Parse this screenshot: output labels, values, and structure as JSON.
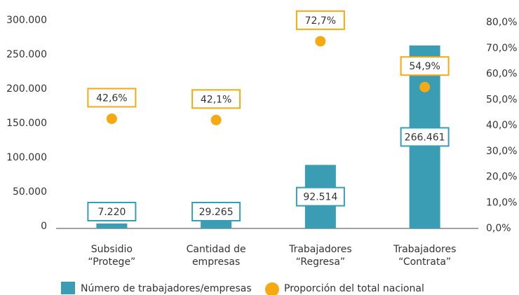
{
  "chart_data": {
    "type": "bar",
    "categories": [
      "Subsidio “Protege”",
      "Cantidad de empresas",
      "Trabajadores “Regresa”",
      "Trabajadores “Contrata”"
    ],
    "series": [
      {
        "name": "Número de trabajadores/empresas",
        "type": "bar",
        "color": "#3a9db4",
        "values": [
          7220,
          29265,
          92514,
          266461
        ],
        "value_labels": [
          "7.220",
          "29.265",
          "92.514",
          "266.461"
        ]
      },
      {
        "name": "Proporción del total nacional",
        "type": "scatter",
        "axis": "y2",
        "color": "#f5a913",
        "values": [
          42.6,
          42.1,
          72.7,
          54.9
        ],
        "value_labels": [
          "42,6%",
          "42,1%",
          "72,7%",
          "54,9%"
        ]
      }
    ],
    "ylim": [
      0,
      300000
    ],
    "yticks": [
      0,
      {
        "value": 50000,
        "label": "50.000"
      },
      {
        "value": 100000,
        "label": "100.000"
      },
      {
        "value": 150000,
        "label": "150.000"
      },
      {
        "value": 200000,
        "label": "200.000"
      },
      {
        "value": 250000,
        "label": "250.000"
      },
      {
        "value": 300000,
        "label": "300.000"
      }
    ],
    "y2lim": [
      0,
      80
    ],
    "y2ticks": [
      {
        "value": 0,
        "label": "0,0%"
      },
      {
        "value": 10,
        "label": "10,0%"
      },
      {
        "value": 20,
        "label": "20,0%"
      },
      {
        "value": 30,
        "label": "30,0%"
      },
      {
        "value": 40,
        "label": "40,0%"
      },
      {
        "value": 50,
        "label": "50,0%"
      },
      {
        "value": 60,
        "label": "60,0%"
      },
      {
        "value": 70,
        "label": "70,0%"
      },
      {
        "value": 80,
        "label": "80,0%"
      }
    ],
    "grid": false,
    "legend": "bottom"
  }
}
